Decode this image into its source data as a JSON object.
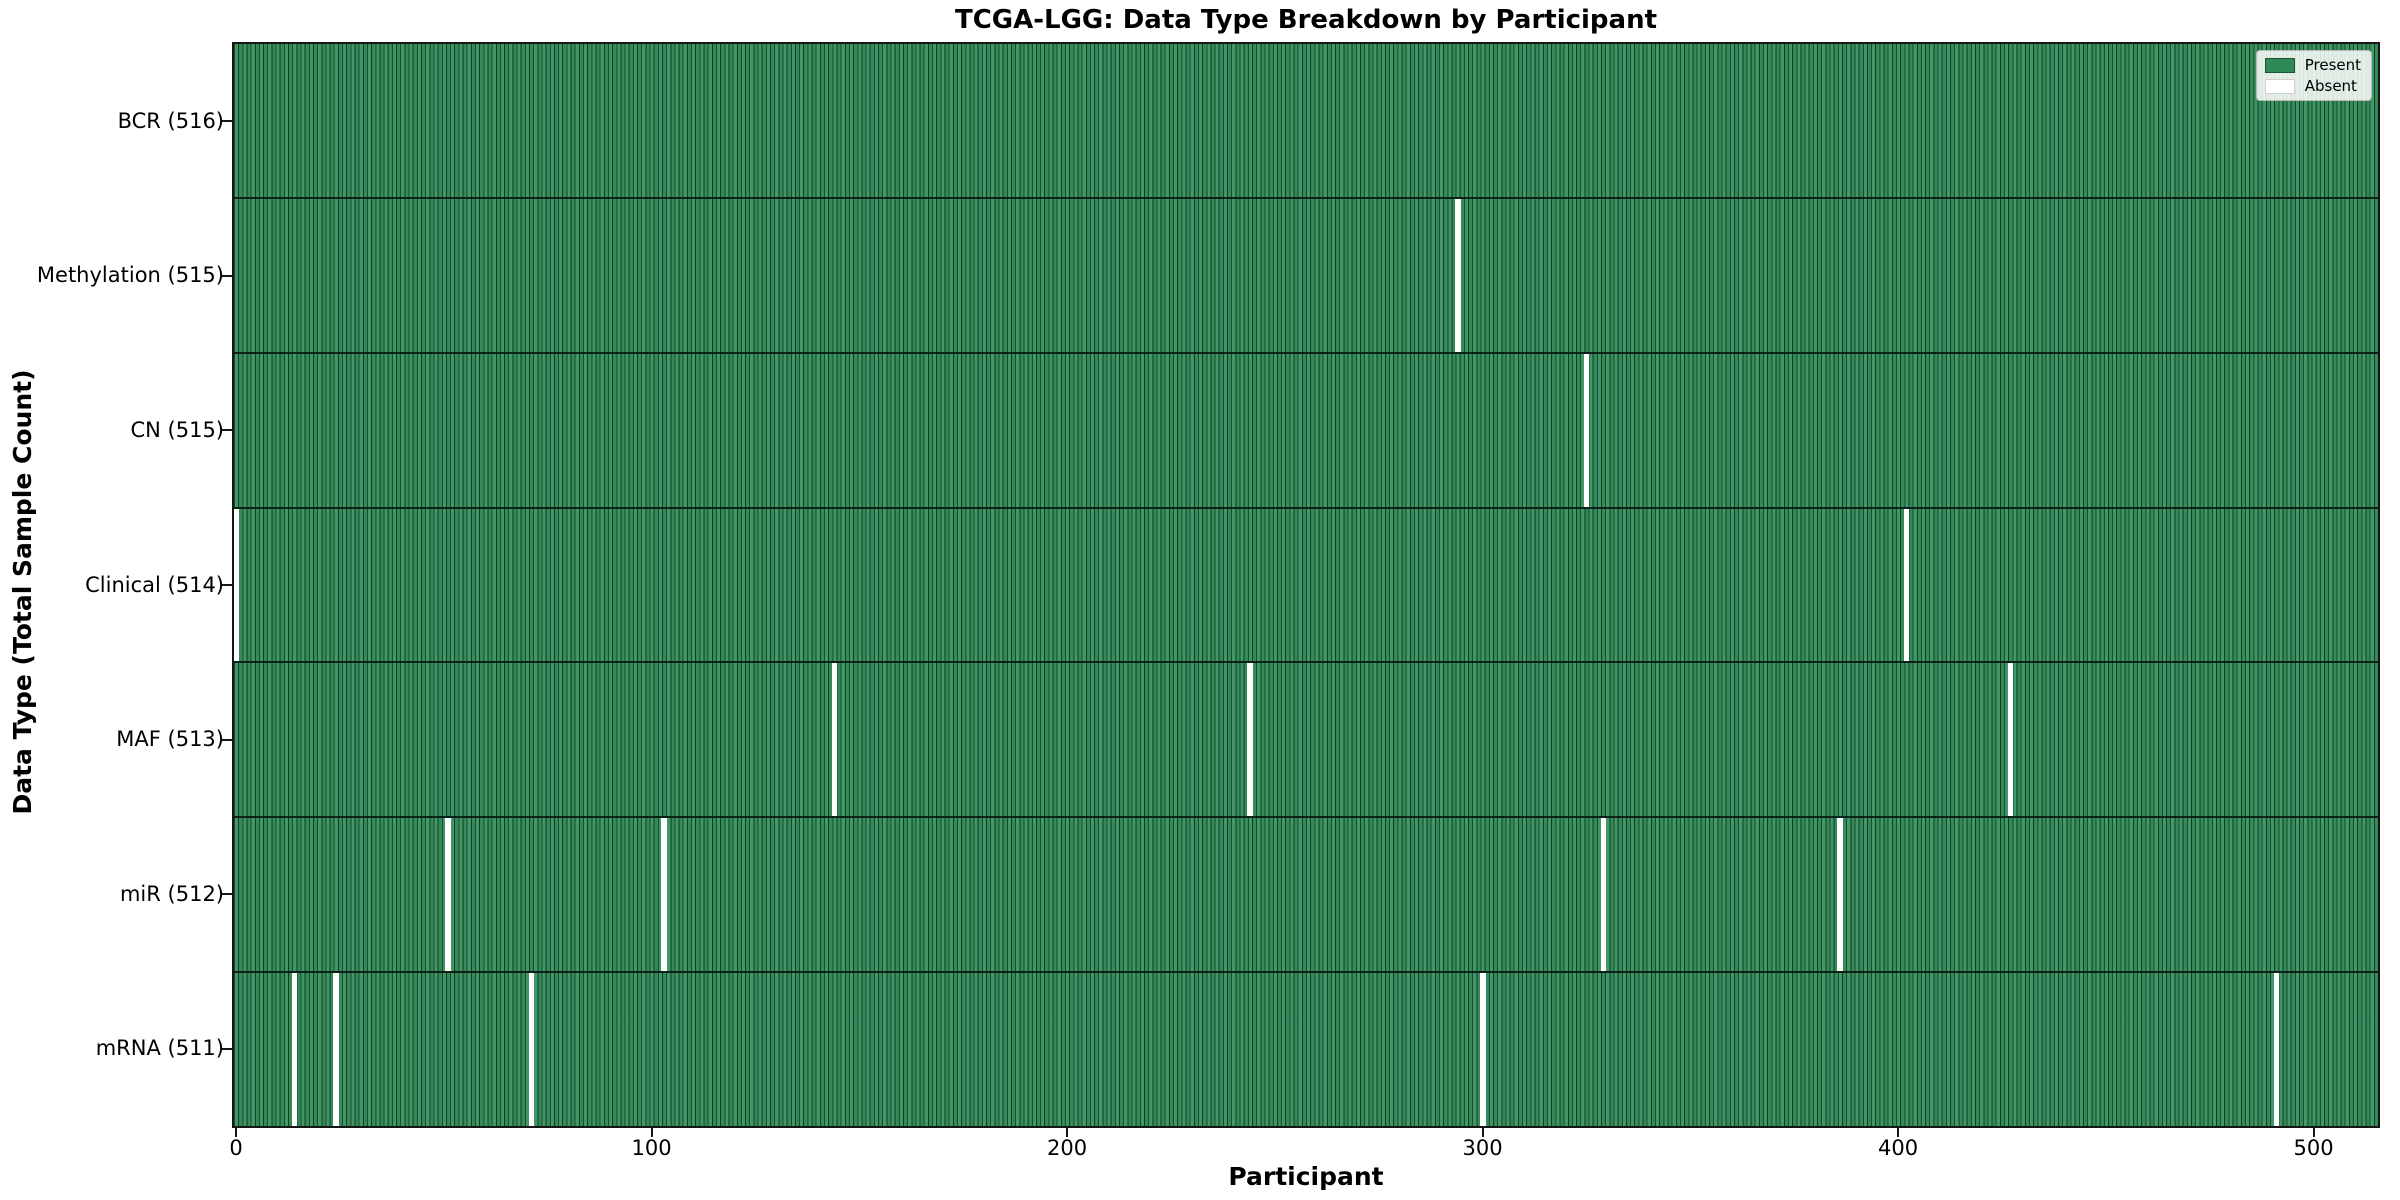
{
  "chart_data": {
    "type": "heatmap",
    "title": "TCGA-LGG: Data Type Breakdown by Participant",
    "xlabel": "Participant",
    "ylabel": "Data Type (Total Sample Count)",
    "n_participants": 516,
    "x_ticks": [
      0,
      100,
      200,
      300,
      400,
      500
    ],
    "xlim": [
      -0.5,
      515.5
    ],
    "grid": false,
    "legend": {
      "position": "upper right",
      "entries": [
        {
          "label": "Present",
          "color": "#2e8b57"
        },
        {
          "label": "Absent",
          "color": "#ffffff"
        }
      ]
    },
    "colors": {
      "present_fill": "#37925e",
      "cell_edge": "#0a3820",
      "absent_fill": "#ffffff",
      "frame": "#161616"
    },
    "rows": [
      {
        "label": "BCR (516)",
        "data_type": "BCR",
        "total_samples": 516,
        "absent_participants": []
      },
      {
        "label": "Methylation (515)",
        "data_type": "Methylation",
        "total_samples": 515,
        "absent_participants": [
          294
        ]
      },
      {
        "label": "CN (515)",
        "data_type": "CN",
        "total_samples": 515,
        "absent_participants": [
          325
        ]
      },
      {
        "label": "Clinical (514)",
        "data_type": "Clinical",
        "total_samples": 514,
        "absent_participants": [
          0,
          402
        ]
      },
      {
        "label": "MAF (513)",
        "data_type": "MAF",
        "total_samples": 513,
        "absent_participants": [
          144,
          244,
          427
        ]
      },
      {
        "label": "miR (512)",
        "data_type": "miR",
        "total_samples": 512,
        "absent_participants": [
          51,
          103,
          329,
          386
        ]
      },
      {
        "label": "mRNA (511)",
        "data_type": "mRNA",
        "total_samples": 511,
        "absent_participants": [
          14,
          24,
          71,
          300,
          491
        ]
      }
    ]
  }
}
